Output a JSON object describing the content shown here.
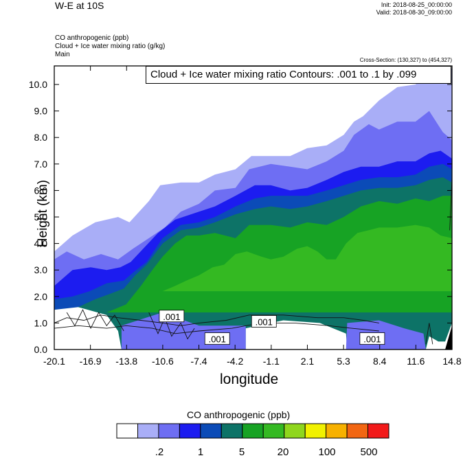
{
  "header": {
    "title": "W-E at 10S",
    "init": "Init: 2018-08-25_00:00:00",
    "valid": "Valid: 2018-08-30_09:00:00"
  },
  "fields": {
    "line1": "CO anthropogenic   (ppb)",
    "line2": "Cloud + Ice water mixing ratio   (g/kg)",
    "line3": "Main"
  },
  "cross_section": "Cross-Section: (130,327) to (454,327)",
  "contour_info": "Cloud + Ice water mixing ratio Contours: .001 to .1 by .099",
  "colors": {
    "levels": [
      "#ffffff",
      "#a9aef7",
      "#6e6ef3",
      "#1c1cf0",
      "#0b4bb7",
      "#0d7367",
      "#17a324",
      "#34b922",
      "#8fd61d",
      "#f1f100",
      "#f7b100",
      "#f26612",
      "#f21a1a"
    ]
  },
  "colorbar": {
    "title": "CO anthropogenic  (ppb)",
    "labels": [
      ".2",
      "1",
      "5",
      "20",
      "100",
      "500"
    ]
  },
  "chart_data": {
    "type": "heatmap",
    "title": "W-E at 10S",
    "xlabel": "longitude",
    "ylabel": "Height (km)",
    "x_ticks": [
      "-20.1",
      "-16.9",
      "-13.8",
      "-10.6",
      "-7.4",
      "-4.2",
      "-1.1",
      "2.1",
      "5.3",
      "8.4",
      "11.6",
      "14.8"
    ],
    "y_ticks": [
      "0.0",
      "1.0",
      "2.0",
      "3.0",
      "4.0",
      "5.0",
      "6.0",
      "7.0",
      "8.0",
      "9.0",
      "10.0"
    ],
    "xlim": [
      -20.1,
      14.8
    ],
    "ylim": [
      0,
      10.7
    ],
    "contour_labels": [
      ".001",
      ".001",
      ".001",
      ".001"
    ],
    "filled_bands": [
      {
        "level": 1,
        "top": [
          [
            -20.1,
            3.7
          ],
          [
            -18.5,
            4.3
          ],
          [
            -16.5,
            4.8
          ],
          [
            -14.5,
            5.0
          ],
          [
            -13.5,
            4.8
          ],
          [
            -11.8,
            5.6
          ],
          [
            -10.8,
            6.2
          ],
          [
            -9.0,
            6.3
          ],
          [
            -7.4,
            6.3
          ],
          [
            -6.0,
            6.6
          ],
          [
            -4.2,
            6.8
          ],
          [
            -2.8,
            7.3
          ],
          [
            -1.1,
            7.3
          ],
          [
            0.6,
            7.3
          ],
          [
            2.1,
            7.6
          ],
          [
            3.8,
            7.7
          ],
          [
            5.3,
            8.1
          ],
          [
            6.2,
            8.6
          ],
          [
            7.0,
            8.8
          ],
          [
            8.4,
            9.4
          ],
          [
            10.0,
            9.9
          ],
          [
            11.6,
            10.0
          ],
          [
            12.8,
            10.5
          ],
          [
            14.8,
            10.6
          ]
        ],
        "bottom": 0
      },
      {
        "level": 2,
        "top": [
          [
            -20.1,
            3.4
          ],
          [
            -19.0,
            3.7
          ],
          [
            -17.5,
            3.4
          ],
          [
            -16.0,
            3.6
          ],
          [
            -14.5,
            3.4
          ],
          [
            -13.2,
            3.8
          ],
          [
            -11.8,
            4.2
          ],
          [
            -10.4,
            4.6
          ],
          [
            -9.0,
            5.2
          ],
          [
            -7.4,
            5.5
          ],
          [
            -6.0,
            6.0
          ],
          [
            -4.2,
            6.1
          ],
          [
            -3.0,
            6.8
          ],
          [
            -1.1,
            7.0
          ],
          [
            0.6,
            6.9
          ],
          [
            2.1,
            6.8
          ],
          [
            3.8,
            7.1
          ],
          [
            5.3,
            7.5
          ],
          [
            6.2,
            8.1
          ],
          [
            7.5,
            8.5
          ],
          [
            8.4,
            8.3
          ],
          [
            10.0,
            8.6
          ],
          [
            11.6,
            8.6
          ],
          [
            12.8,
            9.0
          ],
          [
            14.0,
            8.2
          ],
          [
            14.8,
            7.9
          ]
        ],
        "bottom": 0
      },
      {
        "level": 3,
        "top": [
          [
            -20.1,
            2.4
          ],
          [
            -18.5,
            3.0
          ],
          [
            -16.9,
            3.1
          ],
          [
            -15.5,
            3.0
          ],
          [
            -14.3,
            3.1
          ],
          [
            -13.4,
            3.3
          ],
          [
            -12.3,
            3.8
          ],
          [
            -11.0,
            4.4
          ],
          [
            -9.5,
            4.9
          ],
          [
            -7.4,
            5.2
          ],
          [
            -6.0,
            5.4
          ],
          [
            -4.2,
            5.8
          ],
          [
            -2.5,
            6.2
          ],
          [
            -1.1,
            6.2
          ],
          [
            0.6,
            6.0
          ],
          [
            2.1,
            6.1
          ],
          [
            3.8,
            6.4
          ],
          [
            5.3,
            6.7
          ],
          [
            6.8,
            6.9
          ],
          [
            8.4,
            6.9
          ],
          [
            10.0,
            7.1
          ],
          [
            11.6,
            7.1
          ],
          [
            12.8,
            7.4
          ],
          [
            13.8,
            7.5
          ],
          [
            14.8,
            7.2
          ]
        ],
        "bottom": 0
      },
      {
        "level": 4,
        "top": [
          [
            -20.1,
            1.9
          ],
          [
            -18.5,
            2.0
          ],
          [
            -17.0,
            2.2
          ],
          [
            -15.5,
            2.5
          ],
          [
            -14.0,
            2.6
          ],
          [
            -13.2,
            2.9
          ],
          [
            -12.0,
            3.3
          ],
          [
            -10.6,
            4.2
          ],
          [
            -9.0,
            4.7
          ],
          [
            -7.4,
            4.8
          ],
          [
            -6.0,
            5.0
          ],
          [
            -4.2,
            5.4
          ],
          [
            -2.5,
            5.7
          ],
          [
            -1.1,
            5.8
          ],
          [
            0.6,
            5.8
          ],
          [
            2.1,
            5.8
          ],
          [
            3.8,
            6.0
          ],
          [
            5.3,
            6.2
          ],
          [
            6.8,
            6.4
          ],
          [
            8.4,
            6.5
          ],
          [
            10.0,
            6.5
          ],
          [
            11.6,
            6.6
          ],
          [
            12.8,
            6.9
          ],
          [
            14.0,
            7.0
          ],
          [
            14.8,
            6.8
          ]
        ],
        "bottom": 0
      },
      {
        "level": 5,
        "top": [
          [
            -20.1,
            1.5
          ],
          [
            -18.0,
            1.6
          ],
          [
            -16.5,
            1.9
          ],
          [
            -15.2,
            2.1
          ],
          [
            -14.0,
            2.3
          ],
          [
            -13.0,
            2.8
          ],
          [
            -12.0,
            3.2
          ],
          [
            -10.6,
            4.0
          ],
          [
            -9.0,
            4.5
          ],
          [
            -7.4,
            4.6
          ],
          [
            -6.0,
            4.8
          ],
          [
            -4.2,
            5.1
          ],
          [
            -2.5,
            5.3
          ],
          [
            -1.1,
            5.4
          ],
          [
            0.6,
            5.3
          ],
          [
            2.1,
            5.4
          ],
          [
            3.8,
            5.6
          ],
          [
            5.3,
            5.8
          ],
          [
            6.8,
            6.0
          ],
          [
            8.4,
            6.1
          ],
          [
            10.0,
            6.1
          ],
          [
            11.6,
            6.2
          ],
          [
            12.8,
            6.4
          ],
          [
            14.0,
            6.5
          ],
          [
            14.8,
            6.3
          ]
        ],
        "bottom": 0
      },
      {
        "level": 6,
        "top": [
          [
            -15.5,
            1.4
          ],
          [
            -13.8,
            1.7
          ],
          [
            -12.5,
            2.4
          ],
          [
            -11.5,
            3.0
          ],
          [
            -10.6,
            3.5
          ],
          [
            -9.5,
            4.0
          ],
          [
            -8.5,
            4.3
          ],
          [
            -7.4,
            4.3
          ],
          [
            -6.0,
            4.4
          ],
          [
            -4.2,
            4.2
          ],
          [
            -3.0,
            4.7
          ],
          [
            -1.1,
            4.7
          ],
          [
            0.6,
            4.6
          ],
          [
            2.1,
            4.8
          ],
          [
            3.8,
            4.7
          ],
          [
            5.3,
            5.0
          ],
          [
            6.8,
            5.4
          ],
          [
            8.4,
            5.6
          ],
          [
            10.0,
            5.5
          ],
          [
            11.6,
            5.7
          ],
          [
            12.8,
            5.6
          ],
          [
            14.0,
            5.8
          ],
          [
            14.8,
            5.8
          ]
        ],
        "bottom": 1.4
      },
      {
        "level": 7,
        "top": [
          [
            -10.6,
            2.2
          ],
          [
            -9.5,
            2.4
          ],
          [
            -8.5,
            2.6
          ],
          [
            -7.4,
            2.8
          ],
          [
            -6.2,
            3.1
          ],
          [
            -5.2,
            3.2
          ],
          [
            -4.2,
            3.6
          ],
          [
            -3.2,
            3.7
          ],
          [
            -1.9,
            3.5
          ],
          [
            -1.1,
            3.4
          ],
          [
            0.0,
            3.5
          ],
          [
            1.2,
            3.8
          ],
          [
            2.1,
            3.9
          ],
          [
            3.0,
            3.7
          ],
          [
            3.8,
            3.4
          ],
          [
            4.6,
            3.4
          ],
          [
            5.5,
            4.0
          ],
          [
            6.5,
            4.4
          ],
          [
            7.5,
            4.5
          ],
          [
            8.4,
            4.6
          ],
          [
            10.0,
            4.6
          ],
          [
            11.6,
            4.7
          ],
          [
            12.8,
            4.6
          ],
          [
            13.8,
            4.3
          ],
          [
            14.8,
            4.2
          ]
        ],
        "bottom": 2.2
      }
    ]
  }
}
